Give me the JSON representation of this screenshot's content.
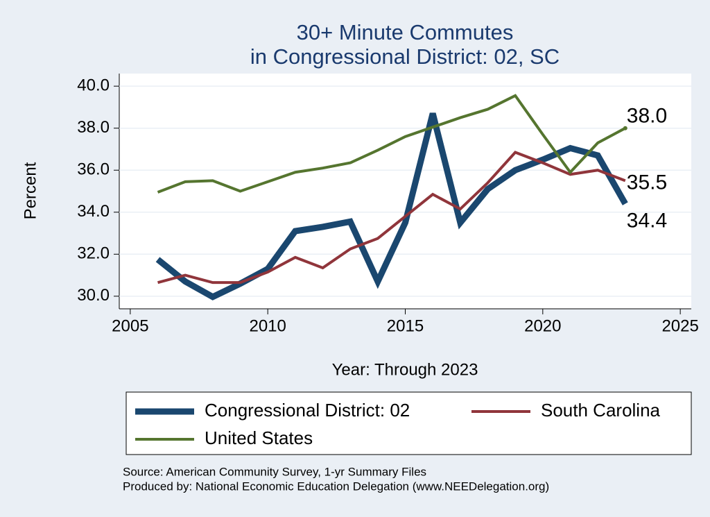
{
  "chart_data": {
    "type": "line",
    "title": [
      "30+ Minute Commutes",
      "in Congressional District:  02, SC"
    ],
    "x_label": "Year: Through 2023",
    "y_label": "Percent",
    "x": [
      2006,
      2007,
      2008,
      2009,
      2010,
      2011,
      2012,
      2013,
      2014,
      2015,
      2016,
      2017,
      2018,
      2019,
      2020,
      2021,
      2022,
      2023
    ],
    "series": [
      {
        "name": "Congressional District:  02",
        "color": "#1a476f",
        "width": 9,
        "end_label": "34.4",
        "values": [
          31.75,
          30.7,
          29.97,
          30.6,
          31.3,
          33.1,
          33.3,
          33.55,
          30.7,
          33.5,
          38.7,
          33.5,
          35.1,
          36.0,
          36.5,
          37.05,
          36.7,
          34.4
        ]
      },
      {
        "name": "South Carolina",
        "color": "#90353b",
        "width": 4,
        "end_label": "35.5",
        "values": [
          30.65,
          31.0,
          30.65,
          30.65,
          31.15,
          31.85,
          31.35,
          32.25,
          32.75,
          33.8,
          34.85,
          34.15,
          35.4,
          36.85,
          36.35,
          35.8,
          36.0,
          35.5
        ]
      },
      {
        "name": "United States",
        "color": "#55752f",
        "width": 4,
        "end_label": "38.0",
        "values": [
          34.95,
          35.45,
          35.5,
          35.0,
          35.45,
          35.9,
          36.1,
          36.35,
          36.95,
          37.6,
          38.05,
          38.5,
          38.9,
          39.55,
          37.7,
          35.9,
          37.3,
          38.0
        ]
      }
    ],
    "xlim": [
      2004.6,
      2025.4
    ],
    "xticks": [
      2005,
      2010,
      2015,
      2020,
      2025
    ],
    "ylim": [
      29.4,
      40.6
    ],
    "yticks": [
      {
        "value": 30,
        "label": "30.0"
      },
      {
        "value": 32,
        "label": "32.0"
      },
      {
        "value": 34,
        "label": "34.0"
      },
      {
        "value": 36,
        "label": "36.0"
      },
      {
        "value": 38,
        "label": "38.0"
      },
      {
        "value": 40,
        "label": "40.0"
      }
    ],
    "grid": true,
    "legend": "bottom",
    "notes": [
      "Source: American Community Survey, 1-yr Summary Files",
      "Produced by: National Economic Education Delegation (www.NEEDelegation.org)"
    ]
  }
}
